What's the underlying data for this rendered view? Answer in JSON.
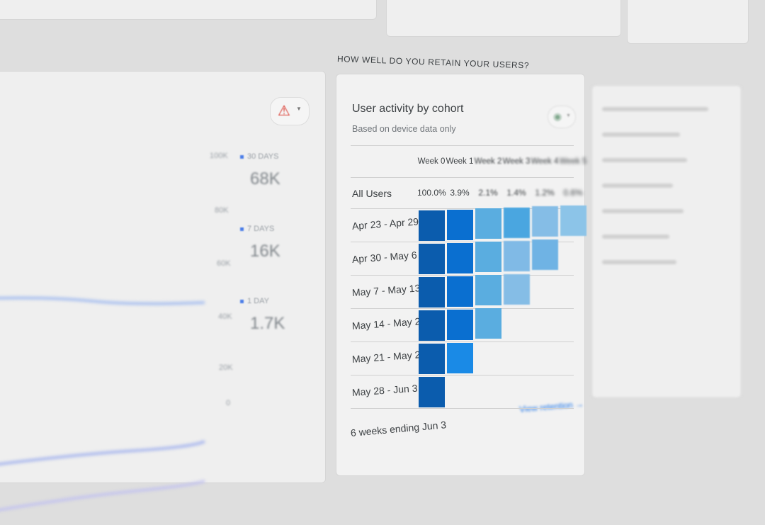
{
  "section": {
    "title": "HOW WELL DO YOU RETAIN YOUR USERS?"
  },
  "left_card": {
    "y_axis_ticks": [
      "100K",
      "80K",
      "60K",
      "40K",
      "20K",
      "0"
    ],
    "legend": [
      {
        "label": "30 DAYS",
        "value": "68K"
      },
      {
        "label": "7 DAYS",
        "value": "16K"
      },
      {
        "label": "1 DAY",
        "value": "1.7K"
      }
    ],
    "alert_icon": "warning-icon",
    "colors": {
      "series": "#4a7de8",
      "alert": "#d93025"
    }
  },
  "cohort": {
    "title": "User activity by cohort",
    "subtitle": "Based on device data only",
    "weeks": [
      "Week 0",
      "Week 1",
      "Week 2",
      "Week 3",
      "Week 4",
      "Week 5"
    ],
    "all_users_label": "All Users",
    "all_users": [
      "100.0%",
      "3.9%",
      "2.1%",
      "1.4%",
      "1.2%",
      "0.6%"
    ],
    "rows": [
      {
        "label": "Apr 23 - Apr 29",
        "colors": [
          "#0b5cad",
          "#0a6fd0",
          "#5aade0",
          "#4aa6e0",
          "#85bde6",
          "#8cc4e8"
        ]
      },
      {
        "label": "Apr 30 - May 6",
        "colors": [
          "#0b5cad",
          "#0a6fd0",
          "#5aade0",
          "#80bae6",
          "#6fb3e4"
        ]
      },
      {
        "label": "May 7 - May 13",
        "colors": [
          "#0b5cad",
          "#0a6fd0",
          "#5aade0",
          "#85bde6"
        ]
      },
      {
        "label": "May 14 - May 20",
        "colors": [
          "#0b5cad",
          "#0a6fd0",
          "#5aade0"
        ]
      },
      {
        "label": "May 21 - May 27",
        "colors": [
          "#0b5cad",
          "#1a8ae6"
        ]
      },
      {
        "label": "May 28 - Jun 3",
        "colors": [
          "#0b5cad"
        ]
      }
    ],
    "footer": "6 weeks ending Jun 3",
    "view_link": "View retention",
    "link_color": "#1a73e8"
  }
}
